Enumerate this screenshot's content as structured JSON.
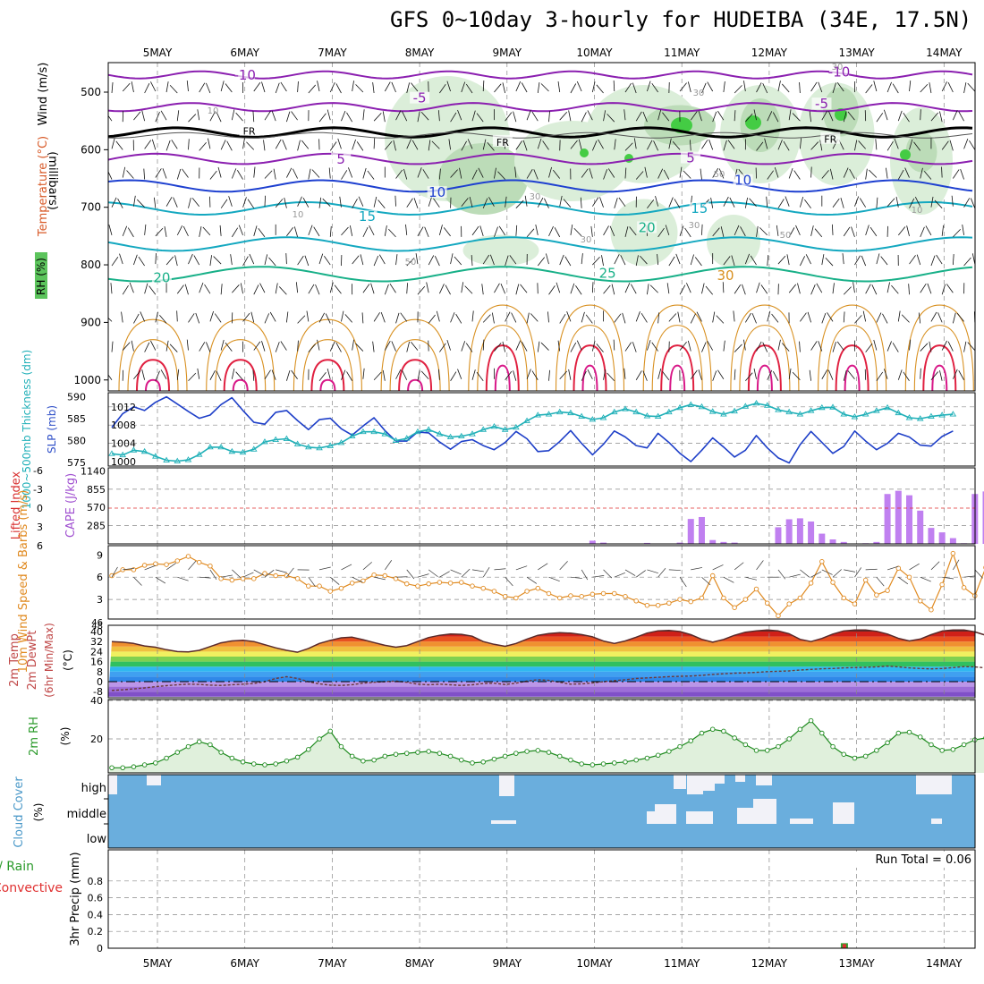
{
  "title": "GFS 0~10day 3-hourly for HUDEIBA (34E, 17.5N)",
  "colors": {
    "purple_temp": "#8b1fb0",
    "freezing": "#000000",
    "blue_temp": "#1e40d0",
    "cyan_temp": "#14a8c0",
    "teal_temp": "#18b088",
    "orange_temp": "#d89020",
    "red_temp": "#e02040",
    "slp_line": "#1e3fc8",
    "thickness_line": "#20b0b8",
    "cape_bar": "#c080f0",
    "lifted_index": "#e03030",
    "wind_speed": "#e08a20",
    "rh_line": "#1e8a1e",
    "rh_fill": "#e0f0dc",
    "cloud_fill": "#6aaedd",
    "precip_conv": "#e03030",
    "precip_total": "#30a030"
  },
  "chart_data": [
    {
      "panel": "upper_air",
      "type": "contour",
      "ylabel_parts": [
        "Wind (m/s)",
        "Temperature (°C)",
        "RH (%)"
      ],
      "ylabel_units": "(millibars)",
      "y_ticks": [
        500,
        600,
        700,
        800,
        900,
        1000
      ],
      "x_ticks": [
        "5MAY",
        "6MAY",
        "7MAY",
        "8MAY",
        "9MAY",
        "10MAY",
        "11MAY",
        "12MAY",
        "13MAY",
        "14MAY"
      ],
      "temperature_contour_labels": [
        {
          "text": "-10",
          "day": 1.0,
          "p": 475
        },
        {
          "text": "-10",
          "day": 7.8,
          "p": 470
        },
        {
          "text": "-5",
          "day": 3.0,
          "p": 515
        },
        {
          "text": "-5",
          "day": 7.6,
          "p": 525
        },
        {
          "text": "FR",
          "day": 1.05,
          "p": 571
        },
        {
          "text": "FR",
          "day": 3.95,
          "p": 590
        },
        {
          "text": "FR",
          "day": 7.7,
          "p": 585
        },
        {
          "text": "5",
          "day": 2.1,
          "p": 621
        },
        {
          "text": "5",
          "day": 6.1,
          "p": 619
        },
        {
          "text": "10",
          "day": 3.2,
          "p": 679
        },
        {
          "text": "10",
          "day": 6.7,
          "p": 658
        },
        {
          "text": "15",
          "day": 2.4,
          "p": 721
        },
        {
          "text": "15",
          "day": 6.2,
          "p": 707
        },
        {
          "text": "20",
          "day": 0.05,
          "p": 827
        },
        {
          "text": "20",
          "day": 5.6,
          "p": 740
        },
        {
          "text": "25",
          "day": 5.15,
          "p": 819
        },
        {
          "text": "30",
          "day": 6.5,
          "p": 823
        }
      ],
      "rh_contour_labels": [
        "10",
        "30",
        "30",
        "50",
        "30",
        "10",
        "30",
        "50",
        "10",
        "50",
        "30"
      ]
    },
    {
      "panel": "slp_thickness",
      "type": "line",
      "ylabel_left": "1000~500mb Thickness (dm)",
      "ylabel_right": "SLP (mb)",
      "y_ticks_thickness": [
        575,
        580,
        585,
        590
      ],
      "y_ticks_slp": [
        1000,
        1004,
        1008,
        1012
      ],
      "series": [
        {
          "name": "SLP",
          "axis": "slp",
          "values": [
            1007.5,
            1010.5,
            1012,
            1011.2,
            1013,
            1014.2,
            1012.6,
            1011,
            1009.5,
            1010.2,
            1012.5,
            1014,
            1011.2,
            1008.6,
            1008.2,
            1010.8,
            1011.2,
            1009,
            1007,
            1009.2,
            1009.5,
            1007.2,
            1005.8,
            1007.8,
            1009.6,
            1006.8,
            1004.5,
            1004.5,
            1006.5,
            1006.3,
            1004.3,
            1002.7,
            1004.4,
            1004.8,
            1003.5,
            1002.6,
            1004.2,
            1006.6,
            1005,
            1002.2,
            1002.4,
            1004.4,
            1006.8,
            1004,
            1001.5,
            1003.8,
            1006.7,
            1005.4,
            1003.5,
            1003,
            1006.2,
            1004.2,
            1001.8,
            1000,
            1002.5,
            1005.2,
            1003.2,
            1001,
            1002.5,
            1005.7,
            1003,
            1000.8,
            999.7,
            1003.7,
            1006.6,
            1004.2,
            1001.8,
            1003.3,
            1006.7,
            1004.5,
            1002.6,
            1004,
            1006.2,
            1005.4,
            1003.6,
            1003.4,
            1005.5,
            1006.7
          ]
        },
        {
          "name": "Thickness",
          "axis": "thk",
          "values": [
            577,
            576.7,
            577.8,
            577.5,
            576.4,
            575.5,
            575.3,
            575.6,
            576.8,
            578.5,
            578.5,
            577.5,
            577.3,
            578,
            579.7,
            580.2,
            580.4,
            579.2,
            578.5,
            578.3,
            578.8,
            579.5,
            581,
            582,
            582,
            581.5,
            580,
            580.5,
            582,
            582.5,
            581.5,
            580.8,
            581,
            581.5,
            582.5,
            583.2,
            582.5,
            583,
            584.5,
            585.8,
            586,
            586.5,
            586.3,
            585.5,
            584.8,
            585.2,
            586.5,
            587.2,
            586.5,
            585.6,
            585.5,
            586.5,
            587.5,
            588.2,
            587.7,
            586.6,
            586,
            586.7,
            587.8,
            588.5,
            588,
            587,
            586.5,
            586,
            586.8,
            587.5,
            587.6,
            586,
            585.4,
            586,
            586.8,
            587.5,
            586.3,
            585.2,
            585,
            585.5,
            585.8,
            586
          ]
        }
      ]
    },
    {
      "panel": "instability",
      "type": "bar",
      "ylabel_left": "Lifted Index",
      "ylabel_right": "CAPE (J/kg)",
      "y_ticks_li": [
        6,
        3,
        0,
        -3,
        -6
      ],
      "y_ticks_cape": [
        285,
        570,
        855,
        1140
      ],
      "cape_values": [
        0,
        0,
        0,
        0,
        0,
        0,
        0,
        0,
        0,
        0,
        0,
        0,
        0,
        0,
        0,
        0,
        0,
        0,
        0,
        0,
        0,
        0,
        0,
        0,
        0,
        0,
        0,
        0,
        0,
        0,
        0,
        0,
        0,
        0,
        0,
        0,
        0,
        0,
        0,
        0,
        0,
        0,
        0,
        0,
        50,
        20,
        5,
        0,
        0,
        15,
        0,
        0,
        20,
        390,
        420,
        60,
        30,
        20,
        5,
        0,
        0,
        260,
        385,
        400,
        350,
        160,
        70,
        30,
        5,
        10,
        30,
        780,
        830,
        760,
        520,
        250,
        180,
        90,
        10,
        780,
        820,
        910,
        1010,
        780,
        45,
        75,
        20,
        40,
        15,
        55
      ]
    },
    {
      "panel": "wind_10m",
      "type": "line",
      "ylabel": "10m Wind Speed & Barbs (m/s)",
      "y_ticks": [
        3,
        6,
        9
      ],
      "y_extra_tick": "46",
      "series": [
        {
          "name": "Speed",
          "values": [
            6.2,
            7,
            7,
            7.6,
            7.8,
            7.7,
            8.2,
            8.8,
            8,
            7.5,
            5.8,
            5.6,
            5.8,
            5.8,
            6.5,
            6.2,
            6.2,
            5.8,
            4.8,
            4.8,
            4.1,
            4.5,
            5.2,
            5.5,
            6.3,
            6.2,
            5.8,
            5.1,
            4.8,
            5.1,
            5.3,
            5.2,
            5.3,
            4.8,
            4.5,
            4.1,
            3.4,
            3.2,
            4.1,
            4.5,
            3.8,
            3.2,
            3.5,
            3.4,
            3.7,
            3.8,
            3.8,
            3.4,
            2.8,
            2.2,
            2.2,
            2.5,
            3,
            2.7,
            3.2,
            6.2,
            3.2,
            1.9,
            3,
            4.4,
            2.5,
            0.8,
            2.4,
            3.2,
            5.2,
            8.1,
            5.3,
            3.2,
            2.4,
            5.6,
            3.6,
            4.2,
            7.2,
            6,
            2.8,
            1.6,
            5,
            9.2,
            4.6,
            3.5,
            7.3,
            4.2,
            2.1,
            1.9,
            2.6,
            4.2,
            3.7,
            3.6,
            0.7,
            2,
            5
          ]
        }
      ]
    },
    {
      "panel": "temperature_2m",
      "type": "area",
      "ylabel_lines": [
        "2m Temp",
        "2m DewPt",
        "(6hr Min/Max)"
      ],
      "ylabel_units": "(°C)",
      "y_ticks": [
        -8,
        0,
        8,
        16,
        24,
        32,
        40
      ],
      "y_extra_tick": "48",
      "series": [
        {
          "name": "Temp",
          "values": [
            32,
            31.5,
            30.5,
            28.5,
            27.5,
            25.5,
            24,
            23.8,
            25,
            28,
            31,
            32.5,
            33,
            32,
            29.5,
            27,
            25,
            23.5,
            26.5,
            30.5,
            33,
            35,
            35.5,
            33.5,
            31.2,
            29,
            27.5,
            28.8,
            32,
            35.2,
            37,
            38,
            37.8,
            36.2,
            32,
            29.8,
            28.2,
            30.5,
            34,
            37,
            38.4,
            39.1,
            38.7,
            37.6,
            35.8,
            32.4,
            30.5,
            32.5,
            35.5,
            38.8,
            40.6,
            40.9,
            40,
            37.5,
            33.8,
            31.5,
            33.7,
            37,
            39.5,
            40.5,
            41.2,
            40.5,
            38.2,
            33.8,
            32,
            34.5,
            38,
            40.4,
            41.3,
            41.3,
            40.2,
            38,
            34.6,
            32.5,
            34,
            37.5,
            40.4,
            41.2,
            41.2,
            39.7,
            37,
            33.6,
            32.7,
            35,
            38,
            40,
            41,
            41.5,
            40.5,
            37.5,
            34.5,
            33,
            37
          ]
        },
        {
          "name": "DewPt",
          "values": [
            -7,
            -6.5,
            -5.8,
            -5,
            -4,
            -3.2,
            -2.5,
            -2,
            -2.2,
            -2.8,
            -3,
            -2.5,
            -2,
            -1.5,
            0,
            2.5,
            4,
            2.5,
            0,
            -1.8,
            -2.8,
            -3,
            -2.4,
            -1.2,
            -0.5,
            0,
            0.5,
            -0.5,
            -2,
            -2.5,
            -2,
            -2.5,
            -3,
            -2.5,
            -1.5,
            -1.2,
            -2.3,
            -1.2,
            0.5,
            1.5,
            1,
            -0.5,
            -2,
            -1.8,
            -1,
            0,
            0.8,
            1.5,
            2.5,
            3,
            3.5,
            4,
            4.3,
            4.5,
            5,
            5.8,
            6.3,
            6.8,
            7,
            7.4,
            8,
            8.3,
            8.6,
            9.3,
            9.8,
            10.3,
            10.5,
            11,
            11.2,
            11.5,
            11.8,
            12.4,
            11.8,
            11,
            10.5,
            10.2,
            10.5,
            11.2,
            12,
            11.8,
            11,
            10.3,
            11.5,
            12.5,
            13,
            13.8,
            14.5,
            13.8,
            13.3,
            13.5,
            14.5
          ]
        }
      ]
    },
    {
      "panel": "rh_2m",
      "type": "area",
      "ylabel": "2m RH (%)",
      "y_ticks": [
        20,
        40
      ],
      "values": [
        5,
        5,
        5.5,
        6.5,
        7.5,
        10,
        13,
        16,
        18.5,
        17,
        13,
        10,
        8,
        7,
        6.5,
        7,
        8.5,
        10.5,
        14.5,
        20,
        24,
        16,
        11,
        8.5,
        9,
        11,
        12,
        12.5,
        13,
        13.5,
        12.5,
        11,
        9,
        7.5,
        8,
        9.5,
        11,
        12.5,
        13.5,
        14,
        13,
        11,
        9,
        7,
        6.5,
        7,
        7.5,
        8,
        9,
        10,
        11.5,
        13.5,
        16,
        19,
        23,
        25,
        24,
        20.5,
        17,
        14,
        14,
        16,
        20,
        25,
        29.5,
        23,
        16,
        12,
        10,
        11,
        14,
        18,
        23,
        23.5,
        21,
        17,
        14,
        14.5,
        17,
        19.5,
        20.5,
        21,
        35,
        31,
        22,
        16,
        12,
        12,
        13.5,
        17,
        22,
        29,
        31,
        26,
        19.5
      ]
    },
    {
      "panel": "cloud_cover",
      "type": "bar",
      "ylabel": "Cloud Cover (%)",
      "levels": [
        "high",
        "middle",
        "low"
      ],
      "high": [
        85,
        30,
        0,
        0,
        0,
        0,
        0,
        0,
        0,
        0,
        0,
        0,
        0,
        0,
        0,
        0,
        0,
        0,
        0,
        0,
        0,
        0,
        0,
        0,
        0,
        0,
        0,
        0,
        0,
        0,
        0,
        0,
        0,
        0,
        0,
        0,
        0,
        0,
        0,
        0,
        0,
        0,
        0,
        0,
        0,
        0,
        0,
        0,
        0,
        0,
        0,
        0,
        0,
        0,
        0,
        0,
        0,
        0,
        0,
        0,
        0,
        0,
        0,
        0,
        0,
        0,
        0,
        0,
        0,
        0,
        0,
        0,
        0,
        0,
        0,
        0,
        0,
        0,
        0,
        0,
        0,
        0,
        0,
        0,
        0,
        0,
        0,
        0,
        0,
        0,
        0
      ],
      "middle": [
        0,
        0,
        0,
        0,
        0,
        0,
        0,
        0,
        0,
        0,
        0,
        0,
        0,
        0,
        0,
        0,
        0,
        0,
        0,
        0,
        0,
        0,
        0,
        0,
        0,
        0,
        0,
        0,
        0,
        0,
        0,
        0,
        0,
        0,
        0,
        0,
        0,
        0,
        0,
        0,
        0,
        0,
        0,
        0,
        0,
        0,
        0,
        0,
        0,
        0,
        0,
        0,
        0,
        0,
        0,
        0,
        0,
        0,
        0,
        0,
        0,
        0,
        0,
        0,
        0,
        0,
        0,
        0,
        0,
        0,
        0,
        0,
        0,
        0,
        0,
        0,
        0,
        0,
        0,
        0,
        0,
        0,
        0,
        0,
        0,
        0,
        0,
        0,
        0,
        0,
        0
      ],
      "low": [
        0,
        0,
        0,
        0,
        0,
        0,
        0,
        0,
        0,
        0,
        0,
        0,
        0,
        0,
        0,
        0,
        0,
        0,
        0,
        0,
        0,
        0,
        0,
        0,
        0,
        0,
        0,
        0,
        0,
        0,
        0,
        0,
        0,
        0,
        0,
        0,
        0,
        0,
        0,
        0,
        0,
        0,
        0,
        0,
        0,
        0,
        0,
        0,
        0,
        0,
        0,
        0,
        0,
        0,
        0,
        0,
        0,
        0,
        0,
        0,
        0,
        0,
        0,
        0,
        0,
        0,
        0,
        0,
        0,
        0,
        0,
        0,
        0,
        0,
        0,
        0,
        0,
        0,
        0,
        0,
        0,
        0,
        0,
        0,
        0,
        0,
        0,
        0,
        0,
        0,
        0
      ]
    },
    {
      "panel": "precip_3hr",
      "type": "bar",
      "ylabel_parts": [
        "Total / Rain",
        "Convective",
        "3hr Precip (mm)"
      ],
      "y_ticks": [
        0,
        0.2,
        0.4,
        0.6,
        0.8
      ],
      "annotation": "Run Total = 0.06",
      "x_ticks": [
        "5MAY",
        "6MAY",
        "7MAY",
        "8MAY",
        "9MAY",
        "10MAY",
        "11MAY",
        "12MAY",
        "13MAY",
        "14MAY"
      ],
      "events": [
        {
          "day": 7.86,
          "total": 0.06,
          "convective": 0.06
        }
      ]
    }
  ]
}
